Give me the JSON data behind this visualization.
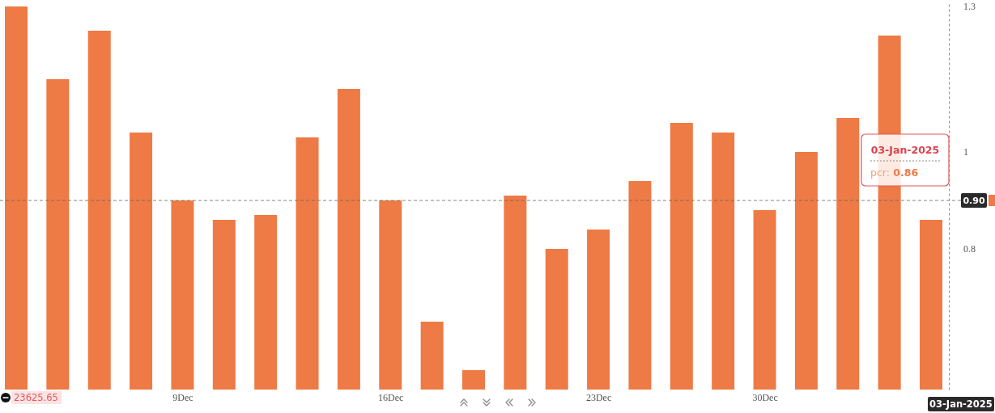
{
  "chart_data": {
    "type": "bar",
    "categories": [
      null,
      null,
      null,
      null,
      "9Dec",
      null,
      null,
      null,
      null,
      "16Dec",
      null,
      null,
      null,
      null,
      "23Dec",
      null,
      null,
      null,
      "30Dec",
      null,
      null,
      null,
      null
    ],
    "values": [
      1.3,
      1.15,
      1.25,
      1.04,
      0.9,
      0.86,
      0.87,
      1.03,
      1.13,
      0.9,
      0.65,
      0.55,
      0.91,
      0.8,
      0.84,
      0.94,
      1.06,
      1.04,
      0.88,
      1.0,
      1.07,
      1.24,
      0.86
    ],
    "color": "#ee7a45",
    "ylim": [
      0.51,
      1.31
    ],
    "yticks": [
      0.8,
      1,
      1.3
    ],
    "ref_lines": [
      {
        "axis": "y",
        "value": 0.9,
        "label": "0.90",
        "line_style": "dashed",
        "color": "#666666"
      }
    ],
    "annotations": [
      "03-Jan-2025",
      "pcr: 0.86",
      "03-Jan-2025",
      "23625.65"
    ]
  }
}
